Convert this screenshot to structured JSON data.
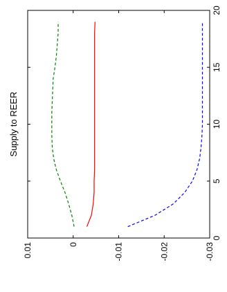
{
  "chart_data": {
    "type": "line",
    "title": "Supply to REER",
    "orientation": "rotated-90-ccw",
    "xlabel": "",
    "ylabel": "",
    "xlim": [
      0,
      20
    ],
    "ylim": [
      -0.03,
      0.01
    ],
    "x_ticks": [
      0,
      5,
      10,
      15,
      20
    ],
    "x_tick_labels": [
      "0",
      "5",
      "10",
      "15",
      "20"
    ],
    "y_ticks": [
      0.01,
      0,
      -0.01,
      -0.02,
      -0.03
    ],
    "y_tick_labels": [
      "0.01",
      "0",
      "-0.01",
      "-0.02",
      "-0.03"
    ],
    "grid": false,
    "legend": "none",
    "series": [
      {
        "color": "#008000",
        "style": "dashed",
        "x": [
          1,
          2,
          3,
          4,
          5,
          6,
          7,
          8,
          9,
          10,
          11,
          12,
          13,
          14,
          15,
          16,
          17,
          18,
          19
        ],
        "y": [
          -0.0002,
          0.0003,
          0.001,
          0.0018,
          0.0028,
          0.0037,
          0.0043,
          0.0046,
          0.0047,
          0.0047,
          0.0047,
          0.0046,
          0.0045,
          0.0044,
          0.004,
          0.0037,
          0.0035,
          0.0033,
          0.0033
        ]
      },
      {
        "color": "#ff0000",
        "style": "solid",
        "x": [
          1,
          2,
          3,
          4,
          5,
          6,
          7,
          8,
          9,
          10,
          11,
          12,
          13,
          14,
          15,
          16,
          17,
          18,
          19
        ],
        "y": [
          -0.003,
          -0.004,
          -0.0044,
          -0.0046,
          -0.0046,
          -0.0047,
          -0.0047,
          -0.0047,
          -0.0047,
          -0.0047,
          -0.0047,
          -0.0047,
          -0.0047,
          -0.0047,
          -0.0047,
          -0.0047,
          -0.0047,
          -0.0047,
          -0.0048
        ]
      },
      {
        "color": "#0000ff",
        "style": "dashed",
        "x": [
          1,
          2,
          3,
          4,
          5,
          6,
          7,
          8,
          9,
          10,
          11,
          12,
          13,
          14,
          15,
          16,
          17,
          18,
          19
        ],
        "y": [
          -0.012,
          -0.018,
          -0.022,
          -0.0245,
          -0.0262,
          -0.0272,
          -0.0278,
          -0.0281,
          -0.0283,
          -0.0284,
          -0.0284,
          -0.0284,
          -0.0284,
          -0.0284,
          -0.0284,
          -0.0284,
          -0.0284,
          -0.0284,
          -0.0284
        ]
      }
    ]
  }
}
